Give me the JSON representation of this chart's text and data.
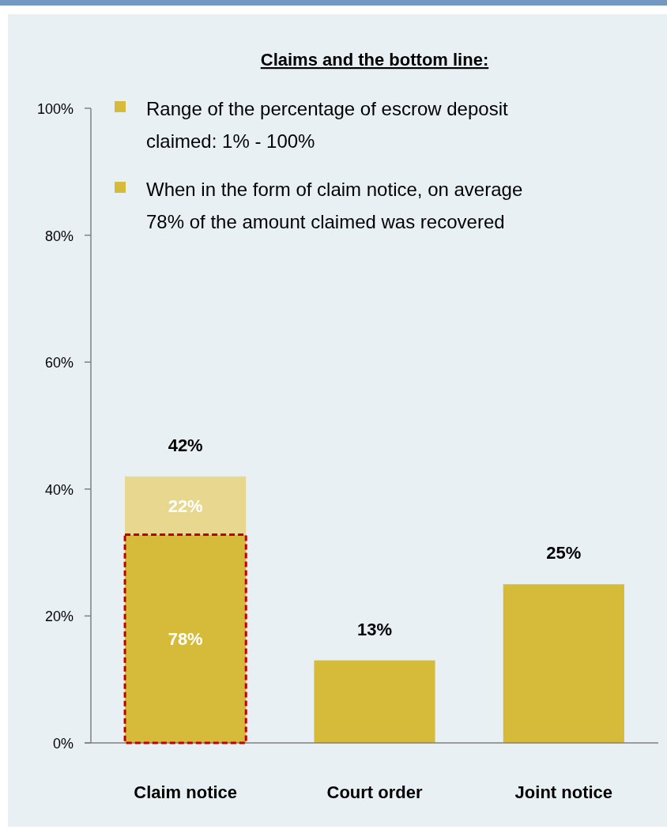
{
  "chart_data": {
    "type": "bar",
    "title": "Claims and the bottom line:",
    "annotations": [
      "Range of the percentage of escrow deposit claimed: 1% - 100%",
      "When in the form of claim notice, on average 78% of the amount claimed was recovered",
      "78%",
      "22%"
    ],
    "categories": [
      "Claim notice",
      "Court order",
      "Joint notice"
    ],
    "stacked": true,
    "series": [
      {
        "color": "#d6bb3b",
        "values": [
          32.8,
          13,
          25
        ]
      },
      {
        "color": "#e8d88f",
        "values": [
          9.2,
          null,
          null
        ]
      }
    ],
    "totals": [
      "42%",
      "13%",
      "25%"
    ],
    "ylim": [
      0,
      100
    ],
    "yticks": [
      {
        "value": 0,
        "label": "0%"
      },
      {
        "value": 20,
        "label": "20%"
      },
      {
        "value": 40,
        "label": "40%"
      },
      {
        "value": 60,
        "label": "60%"
      },
      {
        "value": 80,
        "label": "80%"
      },
      {
        "value": 100,
        "label": "100%"
      }
    ]
  }
}
